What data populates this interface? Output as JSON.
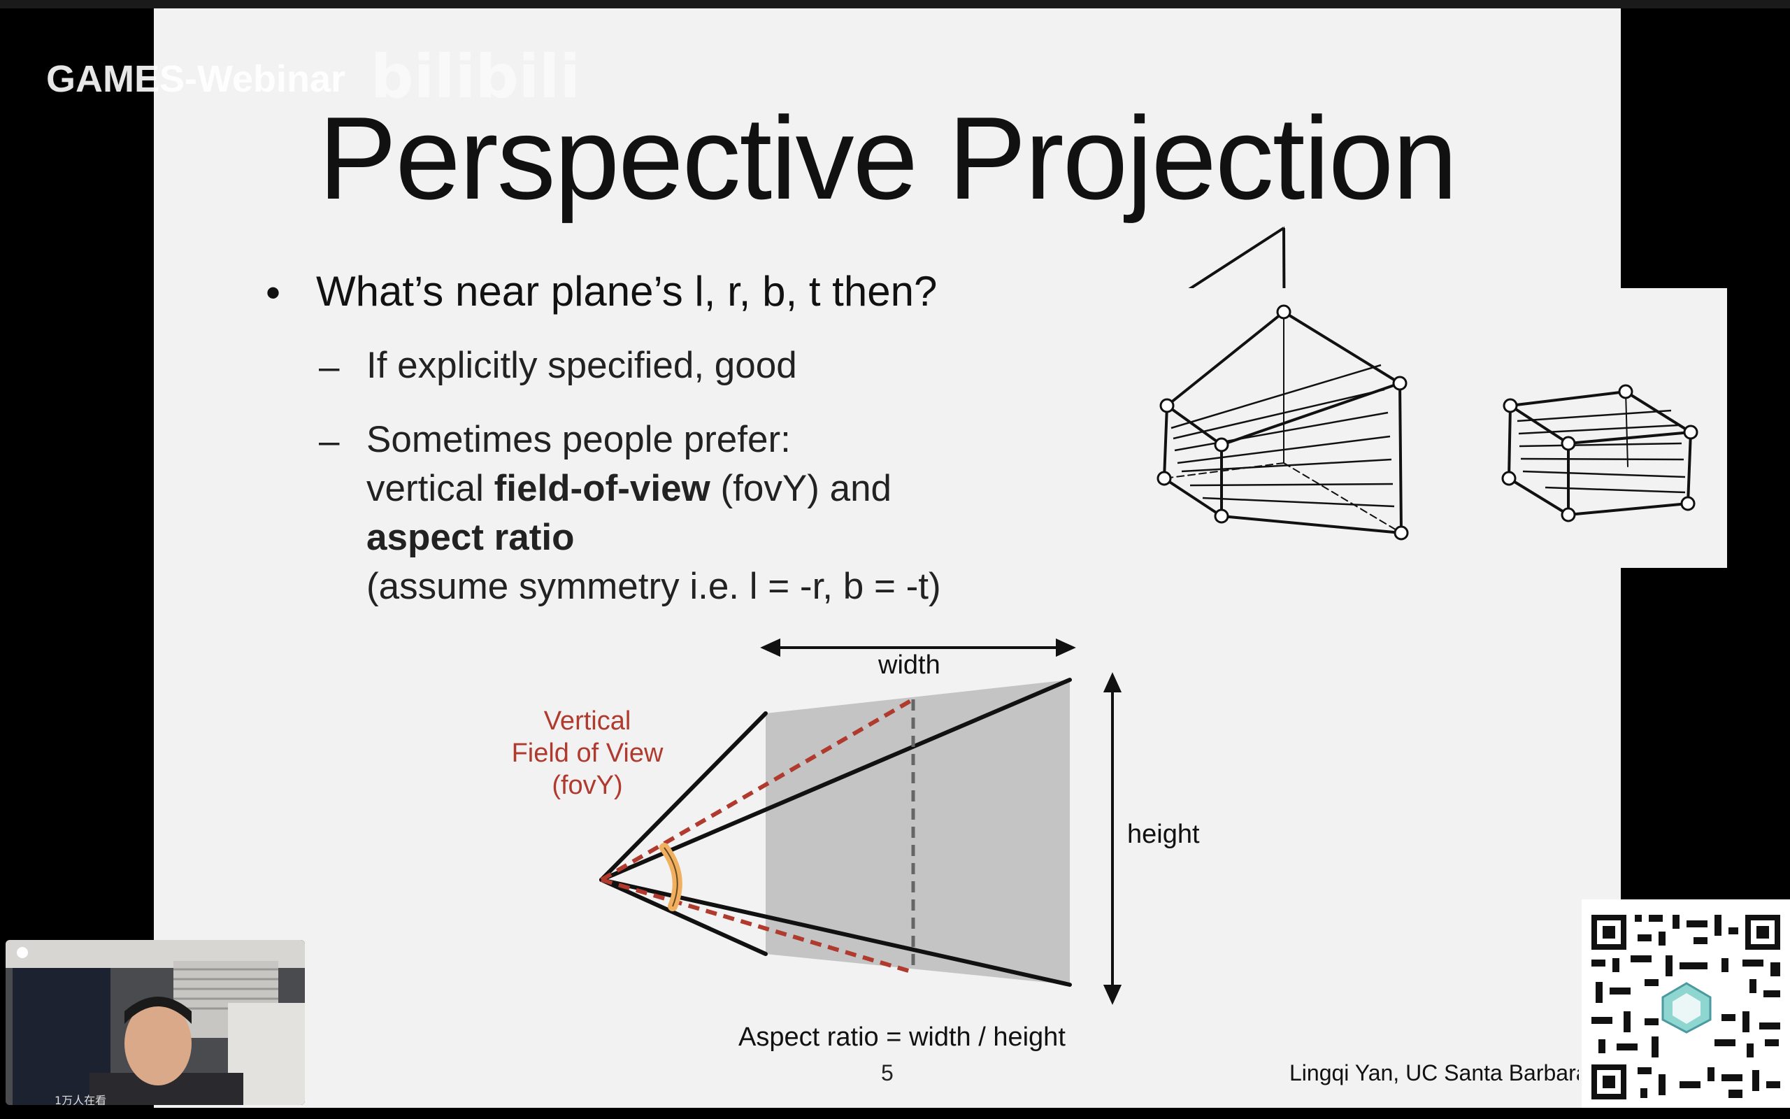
{
  "overlay": {
    "watermark": "GAMES-Webinar",
    "bilibili_logo": "bilibili",
    "viewers": "1万人在看"
  },
  "slide": {
    "title": "Perspective Projection",
    "bullet": "What’s near plane’s l, r, b, t then?",
    "sub1": "If explicitly specified, good",
    "sub2_line1": "Sometimes people prefer:",
    "sub2_line2_pre": "vertical ",
    "sub2_line2_bold": "field-of-view",
    "sub2_line2_post": " (fovY) and",
    "sub2_line3": "aspect ratio",
    "sub2_line4": "(assume symmetry i.e. l = -r, b = -t)",
    "diagram": {
      "width_label": "width",
      "height_label": "height",
      "fov_line1": "Vertical",
      "fov_line2": "Field of View",
      "fov_line3": "(fovY)",
      "aspect_caption": "Aspect ratio = width / height"
    },
    "page_number": "5",
    "credit": "Lingqi Yan, UC Santa Barbara"
  },
  "colors": {
    "slide_bg": "#f2f2f2",
    "fov_red": "#b03a2e",
    "frustum_gray": "#c4c4c4",
    "arc_orange": "#f0b060"
  }
}
